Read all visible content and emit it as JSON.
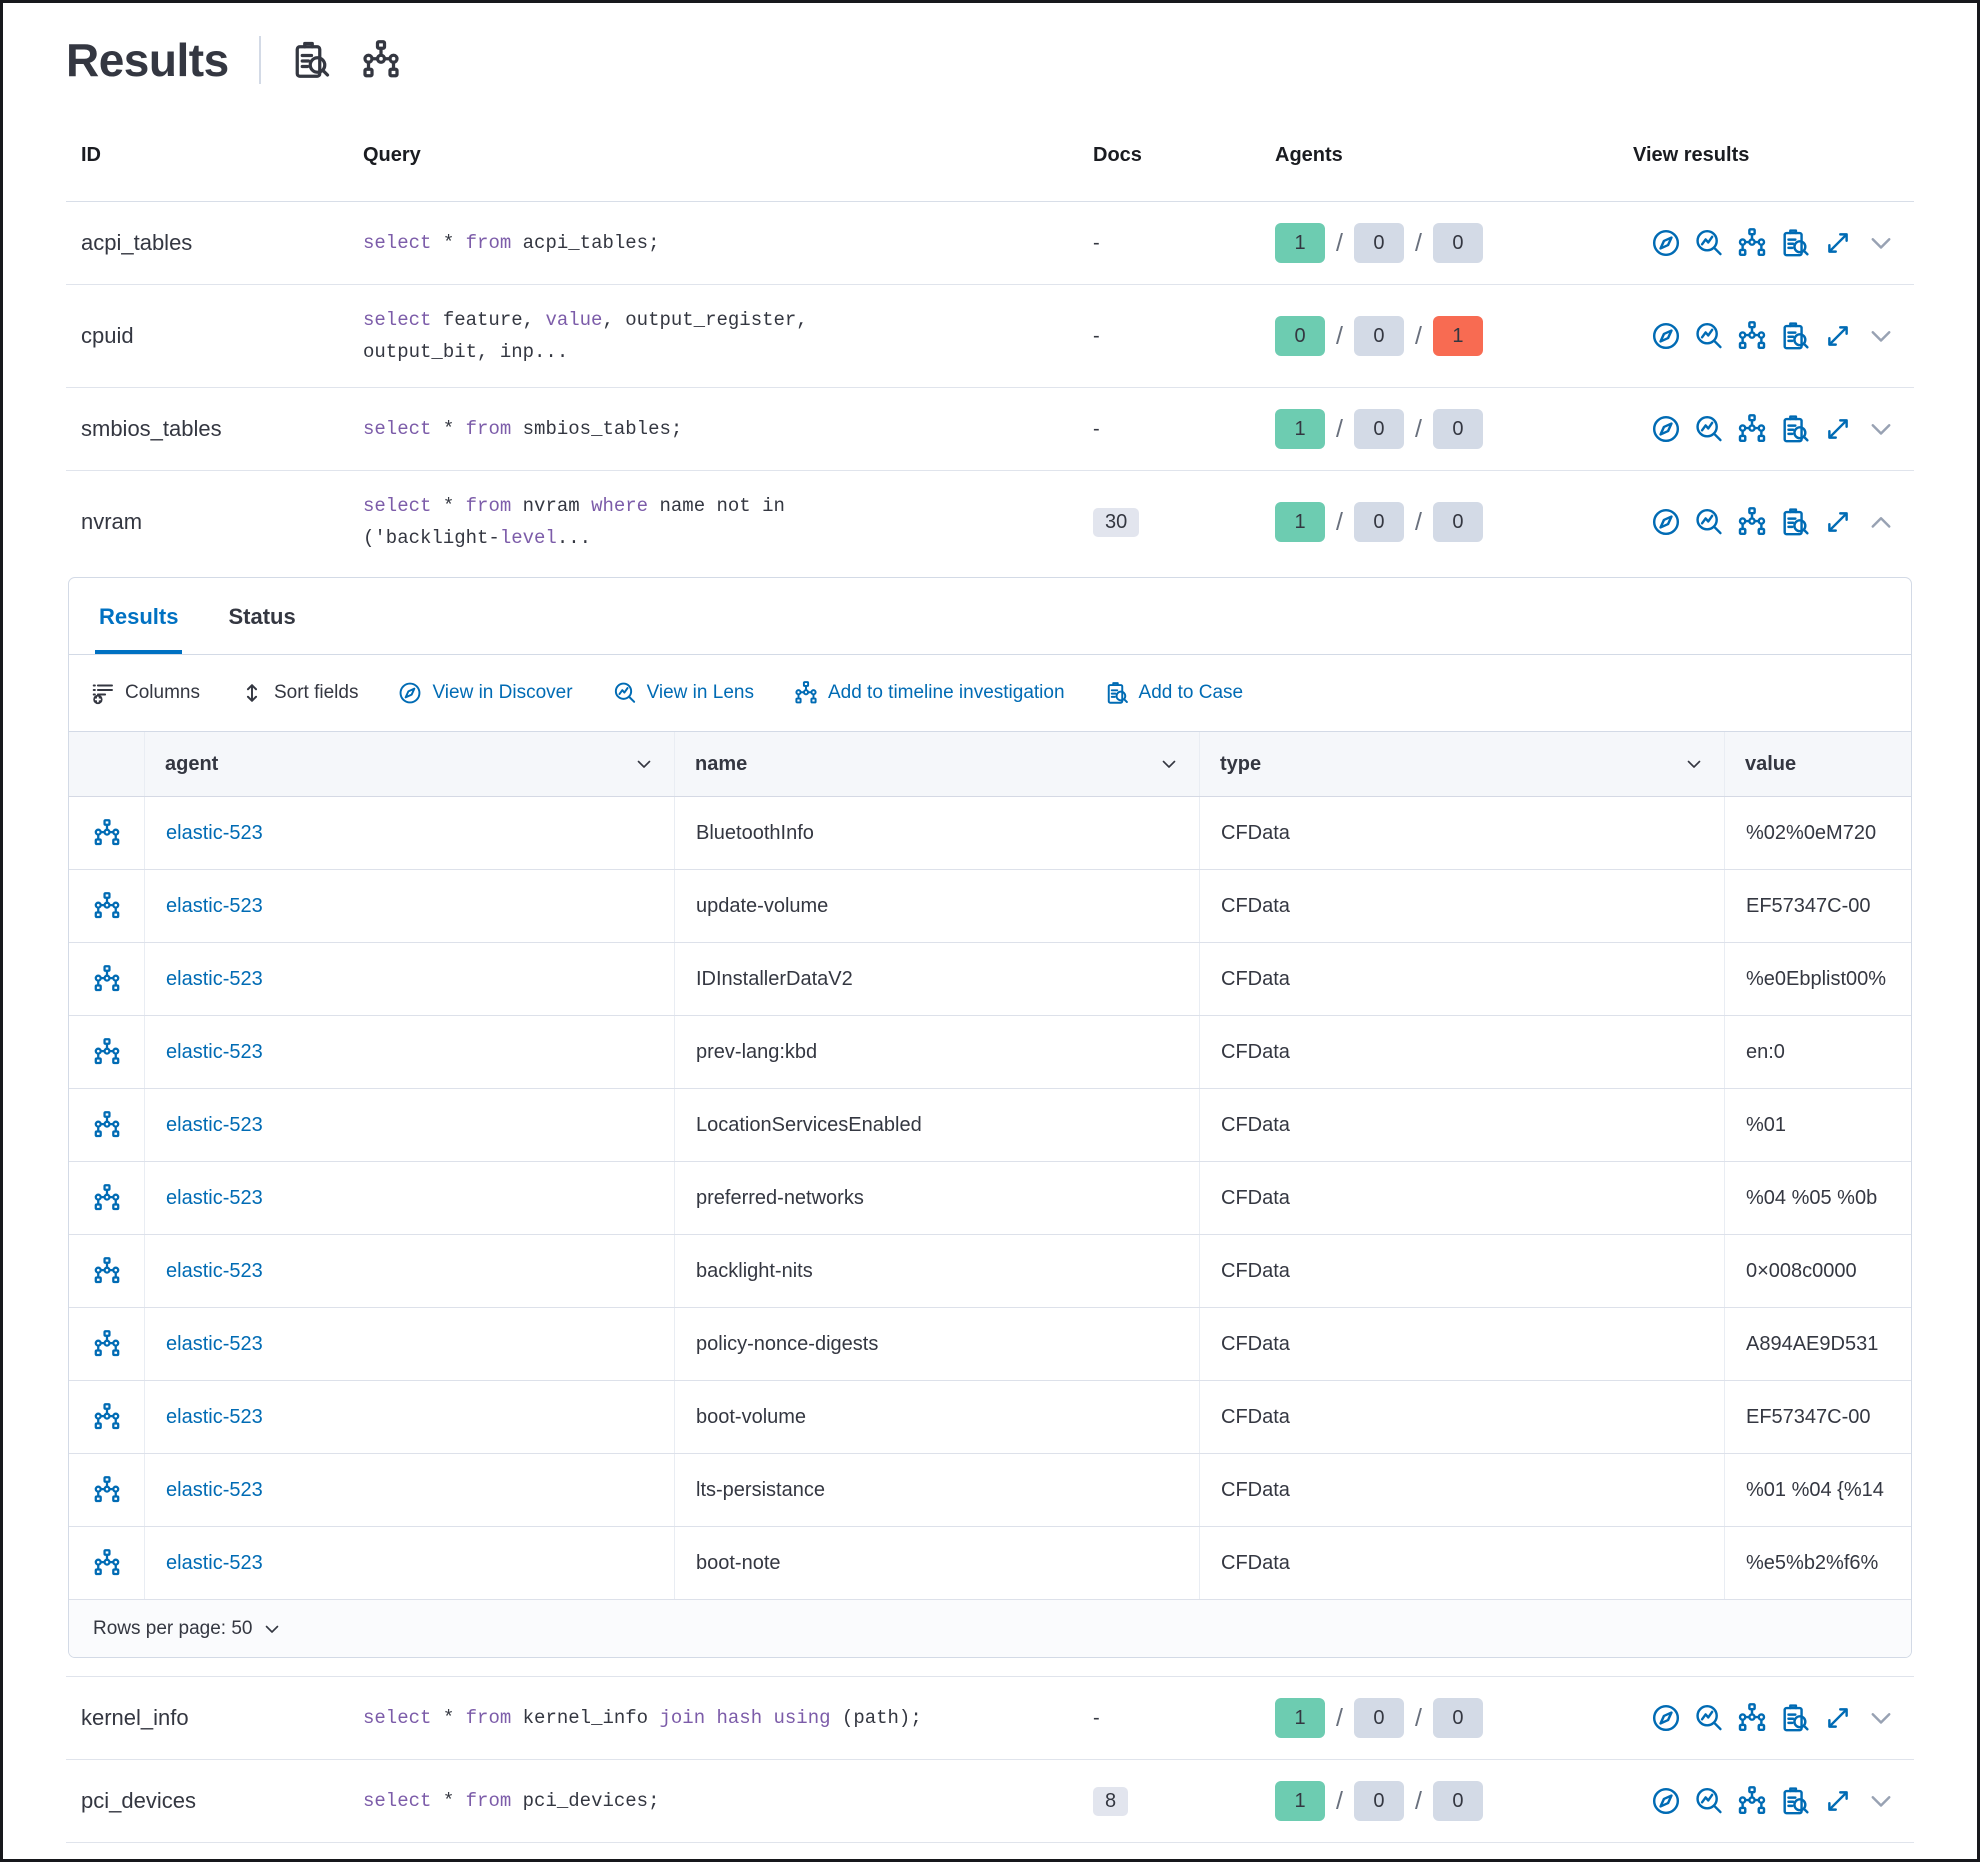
{
  "page": {
    "title": "Results"
  },
  "colors": {
    "link_blue": "#006bb4",
    "active_tab_blue": "#0071c2",
    "keyword_purple": "#7c5ca9",
    "badge_success": "#6dccb1",
    "badge_default": "#d3dae6",
    "badge_danger": "#f86b52",
    "docs_badge_bg": "#e2e5ee"
  },
  "header_icons": [
    {
      "name": "inspect-icon"
    },
    {
      "name": "node-tree-icon"
    }
  ],
  "table": {
    "columns": [
      "ID",
      "Query",
      "Docs",
      "Agents",
      "View results"
    ],
    "row_action_icons": [
      "discover-icon",
      "lens-icon",
      "timeline-icon",
      "inspect-icon",
      "expand-icon"
    ],
    "rows": [
      {
        "id": "acpi_tables",
        "query_lines": [
          [
            [
              "kw",
              "select"
            ],
            [
              "tx",
              " * "
            ],
            [
              "kw",
              "from"
            ],
            [
              "tx",
              " acpi_tables;"
            ]
          ]
        ],
        "docs": {
          "text": "-",
          "badge": false
        },
        "agents": [
          {
            "count": "1",
            "status": "success"
          },
          {
            "count": "0",
            "status": "default"
          },
          {
            "count": "0",
            "status": "default"
          }
        ],
        "expanded": false
      },
      {
        "id": "cpuid",
        "query_lines": [
          [
            [
              "kw",
              "select"
            ],
            [
              "tx",
              " feature, "
            ],
            [
              "kw",
              "value"
            ],
            [
              "tx",
              ", output_register,"
            ]
          ],
          [
            [
              "tx",
              "output_bit, inp..."
            ]
          ]
        ],
        "docs": {
          "text": "-",
          "badge": false
        },
        "agents": [
          {
            "count": "0",
            "status": "success"
          },
          {
            "count": "0",
            "status": "default"
          },
          {
            "count": "1",
            "status": "danger"
          }
        ],
        "expanded": false
      },
      {
        "id": "smbios_tables",
        "query_lines": [
          [
            [
              "kw",
              "select"
            ],
            [
              "tx",
              " * "
            ],
            [
              "kw",
              "from"
            ],
            [
              "tx",
              " smbios_tables;"
            ]
          ]
        ],
        "docs": {
          "text": "-",
          "badge": false
        },
        "agents": [
          {
            "count": "1",
            "status": "success"
          },
          {
            "count": "0",
            "status": "default"
          },
          {
            "count": "0",
            "status": "default"
          }
        ],
        "expanded": false
      },
      {
        "id": "nvram",
        "query_lines": [
          [
            [
              "kw",
              "select"
            ],
            [
              "tx",
              " * "
            ],
            [
              "kw",
              "from"
            ],
            [
              "tx",
              " nvram "
            ],
            [
              "kw",
              "where"
            ],
            [
              "tx",
              " name not in"
            ]
          ],
          [
            [
              "tx",
              "('backlight-"
            ],
            [
              "kw",
              "level"
            ],
            [
              "tx",
              "..."
            ]
          ]
        ],
        "docs": {
          "text": "30",
          "badge": true
        },
        "agents": [
          {
            "count": "1",
            "status": "success"
          },
          {
            "count": "0",
            "status": "default"
          },
          {
            "count": "0",
            "status": "default"
          }
        ],
        "expanded": true
      },
      {
        "id": "kernel_info",
        "query_lines": [
          [
            [
              "kw",
              "select"
            ],
            [
              "tx",
              " * "
            ],
            [
              "kw",
              "from"
            ],
            [
              "tx",
              " kernel_info "
            ],
            [
              "kw",
              "join hash using"
            ],
            [
              "tx",
              " (path);"
            ]
          ]
        ],
        "docs": {
          "text": "-",
          "badge": false
        },
        "agents": [
          {
            "count": "1",
            "status": "success"
          },
          {
            "count": "0",
            "status": "default"
          },
          {
            "count": "0",
            "status": "default"
          }
        ],
        "expanded": false
      },
      {
        "id": "pci_devices",
        "query_lines": [
          [
            [
              "kw",
              "select"
            ],
            [
              "tx",
              " * "
            ],
            [
              "kw",
              "from"
            ],
            [
              "tx",
              " pci_devices;"
            ]
          ]
        ],
        "docs": {
          "text": "8",
          "badge": true
        },
        "agents": [
          {
            "count": "1",
            "status": "success"
          },
          {
            "count": "0",
            "status": "default"
          },
          {
            "count": "0",
            "status": "default"
          }
        ],
        "expanded": false
      }
    ]
  },
  "expanded_panel": {
    "tabs": [
      {
        "label": "Results",
        "active": true
      },
      {
        "label": "Status",
        "active": false
      }
    ],
    "toolbar": [
      {
        "label": "Columns",
        "icon": "columns",
        "style": "plain"
      },
      {
        "label": "Sort fields",
        "icon": "sort",
        "style": "plain"
      },
      {
        "label": "View in Discover",
        "icon": "discover",
        "style": "link"
      },
      {
        "label": "View in Lens",
        "icon": "lens",
        "style": "link"
      },
      {
        "label": "Add to timeline investigation",
        "icon": "tree",
        "style": "link"
      },
      {
        "label": "Add to Case",
        "icon": "inspect",
        "style": "link"
      }
    ],
    "grid": {
      "columns": [
        {
          "label": "agent",
          "sortable": true
        },
        {
          "label": "name",
          "sortable": true
        },
        {
          "label": "type",
          "sortable": true
        },
        {
          "label": "value",
          "sortable": false
        }
      ],
      "rows": [
        {
          "agent": "elastic-523",
          "name": "BluetoothInfo",
          "type": "CFData",
          "value": "%02%0eM720"
        },
        {
          "agent": "elastic-523",
          "name": "update-volume",
          "type": "CFData",
          "value": "EF57347C-00"
        },
        {
          "agent": "elastic-523",
          "name": "IDInstallerDataV2",
          "type": "CFData",
          "value": "%e0Ebplist00%"
        },
        {
          "agent": "elastic-523",
          "name": "prev-lang:kbd",
          "type": "CFData",
          "value": "en:0"
        },
        {
          "agent": "elastic-523",
          "name": "LocationServicesEnabled",
          "type": "CFData",
          "value": "%01"
        },
        {
          "agent": "elastic-523",
          "name": "preferred-networks",
          "type": "CFData",
          "value": "%04 %05 %0b"
        },
        {
          "agent": "elastic-523",
          "name": "backlight-nits",
          "type": "CFData",
          "value": "0×008c0000"
        },
        {
          "agent": "elastic-523",
          "name": "policy-nonce-digests",
          "type": "CFData",
          "value": "A894AE9D531"
        },
        {
          "agent": "elastic-523",
          "name": "boot-volume",
          "type": "CFData",
          "value": "EF57347C-00"
        },
        {
          "agent": "elastic-523",
          "name": "lts-persistance",
          "type": "CFData",
          "value": "%01 %04 {%14"
        },
        {
          "agent": "elastic-523",
          "name": "boot-note",
          "type": "CFData",
          "value": "%e5%b2%f6%"
        }
      ]
    },
    "pagination": {
      "label": "Rows per page: 50"
    }
  }
}
